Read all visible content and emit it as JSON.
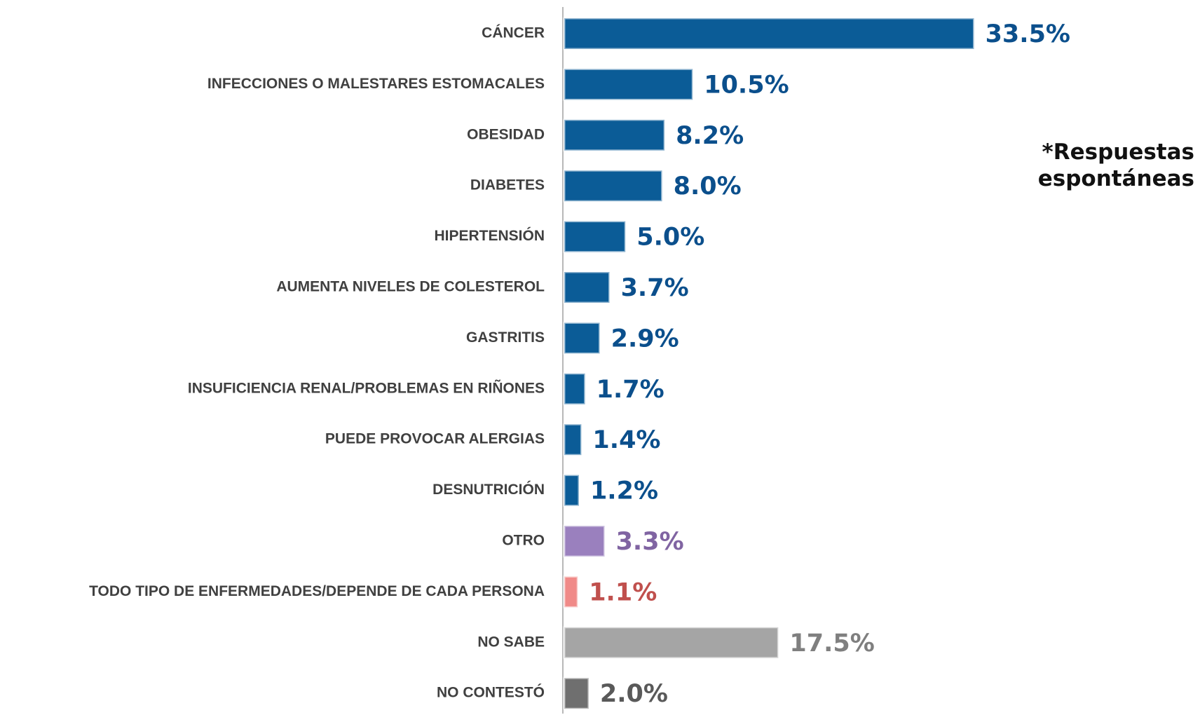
{
  "chart_data": {
    "type": "barh",
    "annotation": "*Respuestas espontáneas",
    "categories": [
      "CÁNCER",
      "INFECCIONES O MALESTARES ESTOMACALES",
      "OBESIDAD",
      "DIABETES",
      "HIPERTENSIÓN",
      "AUMENTA NIVELES DE COLESTEROL",
      "GASTRITIS",
      "INSUFICIENCIA RENAL/PROBLEMAS EN RIÑONES",
      "PUEDE PROVOCAR ALERGIAS",
      "DESNUTRICIÓN",
      "OTRO",
      "TODO TIPO DE ENFERMEDADES/DEPENDE DE CADA PERSONA",
      "NO SABE",
      "NO CONTESTÓ"
    ],
    "values": [
      33.5,
      10.5,
      8.2,
      8.0,
      5.0,
      3.7,
      2.9,
      1.7,
      1.4,
      1.2,
      3.3,
      1.1,
      17.5,
      2.0
    ],
    "value_labels": [
      "33.5%",
      "10.5%",
      "8.2%",
      "8.0%",
      "5.0%",
      "3.7%",
      "2.9%",
      "1.7%",
      "1.4%",
      "1.2%",
      "3.3%",
      "1.1%",
      "17.5%",
      "2.0%"
    ],
    "colors": [
      "#0b5c97",
      "#0b5c97",
      "#0b5c97",
      "#0b5c97",
      "#0b5c97",
      "#0b5c97",
      "#0b5c97",
      "#0b5c97",
      "#0b5c97",
      "#0b5c97",
      "#9a80be",
      "#f08a88",
      "#a5a5a5",
      "#6f6f6f"
    ],
    "label_colors": [
      "#0b4f8c",
      "#0b4f8c",
      "#0b4f8c",
      "#0b4f8c",
      "#0b4f8c",
      "#0b4f8c",
      "#0b4f8c",
      "#0b4f8c",
      "#0b4f8c",
      "#0b4f8c",
      "#8064a2",
      "#c0504d",
      "#7f7f7f",
      "#595959"
    ]
  }
}
